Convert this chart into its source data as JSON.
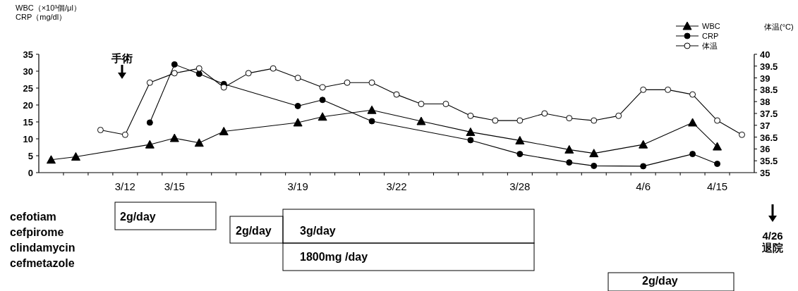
{
  "chart_data": [
    {
      "type": "line",
      "categories": [
        null,
        null,
        null,
        "3/12",
        null,
        "3/15",
        null,
        null,
        null,
        null,
        "3/19",
        null,
        null,
        null,
        "3/22",
        null,
        null,
        null,
        null,
        "3/28",
        null,
        null,
        null,
        null,
        "4/6",
        null,
        null,
        "4/15",
        null
      ],
      "ylabel": "WBC（×10³個/μl）\nCRP（mg/dl）",
      "y2label": "体温(°C)",
      "ylim": [
        0,
        35
      ],
      "yticks": [
        0,
        5,
        10,
        15,
        20,
        25,
        30,
        35
      ],
      "y2lim": [
        35,
        40
      ],
      "y2ticks": [
        35,
        35.5,
        36,
        36.5,
        37,
        37.5,
        38,
        38.5,
        39,
        39.5,
        40
      ],
      "legend": "top right",
      "grid": false,
      "line_style": "solid",
      "annotations": [
        "手術",
        "4/26\n退院"
      ],
      "series": [
        {
          "name": "WBC",
          "color": "#000000",
          "marker": "triangle",
          "values": [
            3.8,
            4.7,
            null,
            null,
            8.3,
            10.2,
            8.8,
            12.2,
            null,
            null,
            14.8,
            16.5,
            null,
            18.5,
            null,
            15.2,
            null,
            12.0,
            null,
            9.5,
            null,
            6.8,
            5.7,
            null,
            8.3,
            null,
            14.8,
            7.7,
            null
          ]
        },
        {
          "name": "CRP",
          "color": "#000000",
          "marker": "circle",
          "values": [
            null,
            null,
            null,
            null,
            14.8,
            32.0,
            29.2,
            26.2,
            null,
            null,
            19.7,
            21.5,
            null,
            15.2,
            null,
            null,
            null,
            9.6,
            null,
            5.5,
            null,
            3.0,
            2.0,
            null,
            1.9,
            null,
            5.5,
            2.6,
            null
          ]
        },
        {
          "name": "体温",
          "color": "#ffffff",
          "marker": "circle",
          "axis": "y2",
          "values": [
            null,
            null,
            36.8,
            36.6,
            38.8,
            39.2,
            39.4,
            38.6,
            39.2,
            39.4,
            39.0,
            38.6,
            38.8,
            38.8,
            38.3,
            37.9,
            37.9,
            37.4,
            37.2,
            37.2,
            37.5,
            37.3,
            37.2,
            37.4,
            38.5,
            38.5,
            38.3,
            37.2,
            36.6
          ]
        }
      ]
    },
    {
      "type": "other",
      "categories": [
        "cefotiam",
        "cefpirome",
        "clindamycin",
        "cefmetazole"
      ],
      "annotations": [
        "2g/day",
        "2g/day",
        "3g/day",
        "1800mg /day",
        "2g/day"
      ]
    }
  ]
}
